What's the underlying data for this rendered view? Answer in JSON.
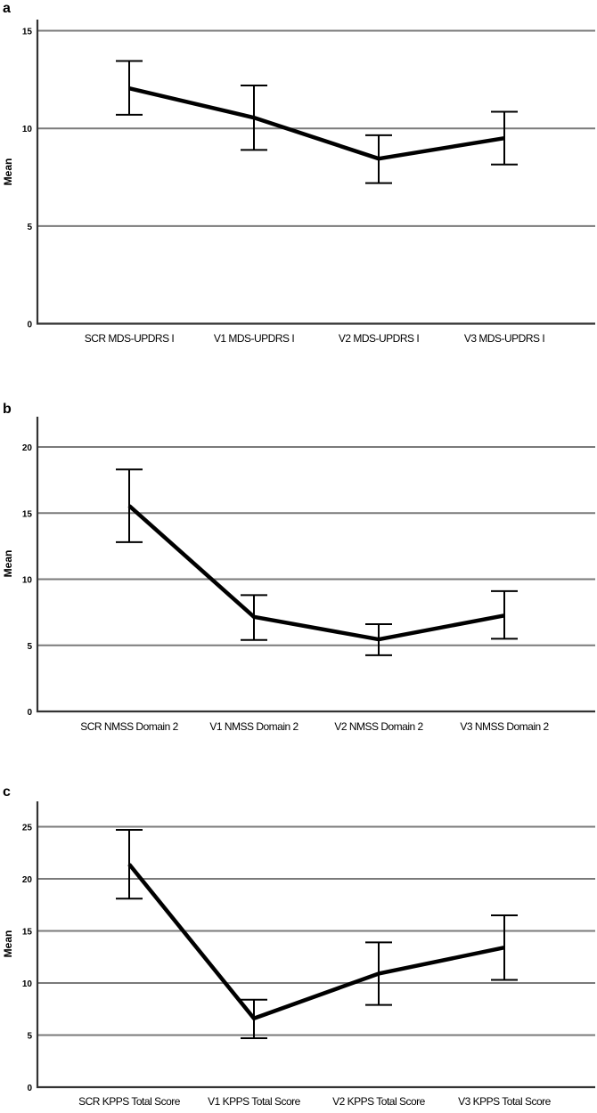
{
  "figure": {
    "panels": [
      {
        "letter": "a",
        "ylabel": "Mean"
      },
      {
        "letter": "b",
        "ylabel": "Mean"
      },
      {
        "letter": "c",
        "ylabel": "Mean"
      }
    ]
  },
  "chart_data": [
    {
      "type": "line",
      "panel": "a",
      "title": "",
      "xlabel": "",
      "ylabel": "Mean",
      "ylim": [
        0,
        15.8
      ],
      "yticks": [
        0,
        5,
        10,
        15
      ],
      "grid": true,
      "error_bars": true,
      "categories": [
        "SCR MDS-UPDRS I",
        "V1 MDS-UPDRS I",
        "V2 MDS-UPDRS I",
        "V3 MDS-UPDRS I"
      ],
      "values": [
        12.05,
        10.55,
        8.45,
        9.5
      ],
      "error_upper": [
        13.45,
        12.2,
        9.65,
        10.85
      ],
      "error_lower": [
        10.7,
        8.9,
        7.2,
        8.15
      ]
    },
    {
      "type": "line",
      "panel": "b",
      "title": "",
      "xlabel": "",
      "ylabel": "Mean",
      "ylim": [
        0,
        22.2
      ],
      "yticks": [
        0,
        5,
        10,
        15,
        20
      ],
      "grid": true,
      "error_bars": true,
      "categories": [
        "SCR NMSS Domain 2",
        "V1 NMSS Domain 2",
        "V2 NMSS Domain 2",
        "V3 NMSS Domain 2"
      ],
      "values": [
        15.55,
        7.15,
        5.45,
        7.25
      ],
      "error_upper": [
        18.3,
        8.8,
        6.6,
        9.1
      ],
      "error_lower": [
        12.8,
        5.4,
        4.25,
        5.5
      ]
    },
    {
      "type": "line",
      "panel": "c",
      "title": "",
      "xlabel": "",
      "ylabel": "Mean",
      "ylim": [
        0,
        27.8
      ],
      "yticks": [
        0,
        5,
        10,
        15,
        20,
        25
      ],
      "grid": true,
      "error_bars": true,
      "categories": [
        "SCR KPPS Total Score",
        "V1 KPPS Total Score",
        "V2 KPPS Total Score",
        "V3 KPPS Total Score"
      ],
      "values": [
        21.4,
        6.6,
        10.9,
        13.4
      ],
      "error_upper": [
        24.7,
        8.4,
        13.9,
        16.5
      ],
      "error_lower": [
        18.1,
        4.7,
        7.9,
        10.3
      ]
    }
  ]
}
